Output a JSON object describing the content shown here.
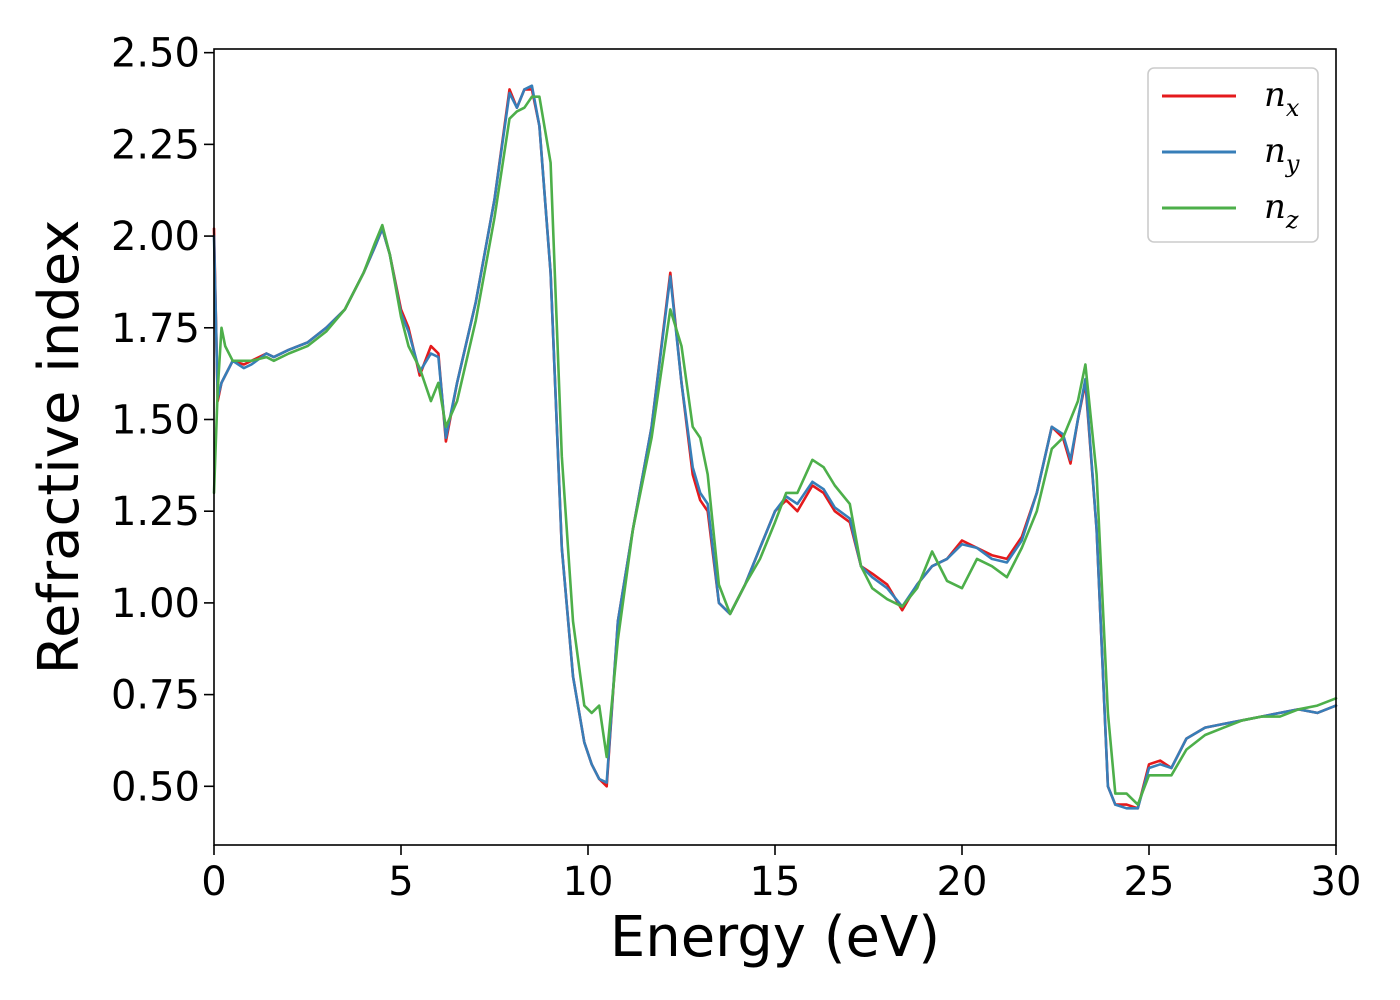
{
  "chart_data": {
    "type": "line",
    "title": "",
    "xlabel": "Energy (eV)",
    "ylabel": "Refractive index",
    "xlim": [
      0,
      30
    ],
    "ylim": [
      0.34,
      2.51
    ],
    "xticks": [
      0,
      5,
      10,
      15,
      20,
      25,
      30
    ],
    "xtick_labels": [
      "0",
      "5",
      "10",
      "15",
      "20",
      "25",
      "30"
    ],
    "yticks": [
      0.5,
      0.75,
      1.0,
      1.25,
      1.5,
      1.75,
      2.0,
      2.25,
      2.5
    ],
    "ytick_labels": [
      "0.50",
      "0.75",
      "1.00",
      "1.25",
      "1.50",
      "1.75",
      "2.00",
      "2.25",
      "2.50"
    ],
    "grid": false,
    "legend_position": "top-right",
    "series": [
      {
        "name": "n",
        "subscript": "x",
        "color": "#e41a1c",
        "x": [
          0,
          0.1,
          0.2,
          0.3,
          0.5,
          0.8,
          1.0,
          1.4,
          1.6,
          2.0,
          2.5,
          3.0,
          3.5,
          4.0,
          4.3,
          4.5,
          4.7,
          5.0,
          5.2,
          5.5,
          5.8,
          6.0,
          6.2,
          6.5,
          7.0,
          7.5,
          7.9,
          8.1,
          8.3,
          8.5,
          8.7,
          9.0,
          9.3,
          9.6,
          9.9,
          10.1,
          10.3,
          10.5,
          10.8,
          11.2,
          11.7,
          12.2,
          12.5,
          12.8,
          13.0,
          13.2,
          13.5,
          13.8,
          14.2,
          14.6,
          15.0,
          15.3,
          15.6,
          16.0,
          16.3,
          16.6,
          17.0,
          17.3,
          17.6,
          18.0,
          18.4,
          18.8,
          19.2,
          19.6,
          20.0,
          20.4,
          20.8,
          21.2,
          21.6,
          22.0,
          22.4,
          22.7,
          22.9,
          23.1,
          23.3,
          23.6,
          23.9,
          24.1,
          24.4,
          24.7,
          25.0,
          25.3,
          25.6,
          26.0,
          26.5,
          27.0,
          27.5,
          28.0,
          28.5,
          29.0,
          29.5,
          30.0
        ],
        "y": [
          2.02,
          1.55,
          1.6,
          1.62,
          1.66,
          1.65,
          1.66,
          1.68,
          1.67,
          1.69,
          1.71,
          1.75,
          1.8,
          1.9,
          1.97,
          2.02,
          1.95,
          1.8,
          1.75,
          1.62,
          1.7,
          1.68,
          1.44,
          1.6,
          1.82,
          2.1,
          2.4,
          2.35,
          2.4,
          2.4,
          2.3,
          1.9,
          1.15,
          0.8,
          0.62,
          0.56,
          0.52,
          0.5,
          0.95,
          1.2,
          1.48,
          1.9,
          1.6,
          1.35,
          1.28,
          1.25,
          1.0,
          0.97,
          1.05,
          1.15,
          1.25,
          1.28,
          1.25,
          1.32,
          1.3,
          1.25,
          1.22,
          1.1,
          1.08,
          1.05,
          0.98,
          1.05,
          1.1,
          1.12,
          1.17,
          1.15,
          1.13,
          1.12,
          1.18,
          1.3,
          1.48,
          1.45,
          1.38,
          1.5,
          1.6,
          1.2,
          0.5,
          0.45,
          0.45,
          0.44,
          0.56,
          0.57,
          0.55,
          0.63,
          0.66,
          0.67,
          0.68,
          0.69,
          0.7,
          0.71,
          0.7,
          0.72
        ]
      },
      {
        "name": "n",
        "subscript": "y",
        "color": "#377eb8",
        "x": [
          0,
          0.1,
          0.2,
          0.3,
          0.5,
          0.8,
          1.0,
          1.4,
          1.6,
          2.0,
          2.5,
          3.0,
          3.5,
          4.0,
          4.3,
          4.5,
          4.7,
          5.0,
          5.2,
          5.5,
          5.8,
          6.0,
          6.2,
          6.5,
          7.0,
          7.5,
          7.9,
          8.1,
          8.3,
          8.5,
          8.7,
          9.0,
          9.3,
          9.6,
          9.9,
          10.1,
          10.3,
          10.5,
          10.8,
          11.2,
          11.7,
          12.2,
          12.5,
          12.8,
          13.0,
          13.2,
          13.5,
          13.8,
          14.2,
          14.6,
          15.0,
          15.3,
          15.6,
          16.0,
          16.3,
          16.6,
          17.0,
          17.3,
          17.6,
          18.0,
          18.4,
          18.8,
          19.2,
          19.6,
          20.0,
          20.4,
          20.8,
          21.2,
          21.6,
          22.0,
          22.4,
          22.7,
          22.9,
          23.1,
          23.3,
          23.6,
          23.9,
          24.1,
          24.4,
          24.7,
          25.0,
          25.3,
          25.6,
          26.0,
          26.5,
          27.0,
          27.5,
          28.0,
          28.5,
          29.0,
          29.5,
          30.0
        ],
        "y": [
          2.0,
          1.56,
          1.6,
          1.62,
          1.66,
          1.64,
          1.65,
          1.68,
          1.67,
          1.69,
          1.71,
          1.75,
          1.8,
          1.9,
          1.97,
          2.02,
          1.95,
          1.79,
          1.74,
          1.63,
          1.68,
          1.67,
          1.45,
          1.6,
          1.82,
          2.1,
          2.39,
          2.35,
          2.4,
          2.41,
          2.3,
          1.9,
          1.15,
          0.8,
          0.62,
          0.56,
          0.52,
          0.51,
          0.95,
          1.2,
          1.48,
          1.89,
          1.6,
          1.37,
          1.3,
          1.27,
          1.0,
          0.97,
          1.05,
          1.15,
          1.25,
          1.29,
          1.27,
          1.33,
          1.31,
          1.26,
          1.23,
          1.1,
          1.07,
          1.04,
          0.99,
          1.05,
          1.1,
          1.12,
          1.16,
          1.15,
          1.12,
          1.11,
          1.17,
          1.3,
          1.48,
          1.46,
          1.39,
          1.5,
          1.61,
          1.2,
          0.5,
          0.45,
          0.44,
          0.44,
          0.55,
          0.56,
          0.55,
          0.63,
          0.66,
          0.67,
          0.68,
          0.69,
          0.7,
          0.71,
          0.7,
          0.72
        ]
      },
      {
        "name": "n",
        "subscript": "z",
        "color": "#4daf4a",
        "x": [
          0,
          0.1,
          0.2,
          0.3,
          0.5,
          0.8,
          1.0,
          1.4,
          1.6,
          2.0,
          2.5,
          3.0,
          3.5,
          4.0,
          4.3,
          4.5,
          4.7,
          5.0,
          5.2,
          5.5,
          5.8,
          6.0,
          6.2,
          6.5,
          7.0,
          7.5,
          7.9,
          8.1,
          8.3,
          8.5,
          8.7,
          9.0,
          9.3,
          9.6,
          9.9,
          10.1,
          10.3,
          10.5,
          10.8,
          11.2,
          11.7,
          12.2,
          12.5,
          12.8,
          13.0,
          13.2,
          13.5,
          13.8,
          14.2,
          14.6,
          15.0,
          15.3,
          15.6,
          16.0,
          16.3,
          16.6,
          17.0,
          17.3,
          17.6,
          18.0,
          18.4,
          18.8,
          19.2,
          19.6,
          20.0,
          20.4,
          20.8,
          21.2,
          21.6,
          22.0,
          22.4,
          22.7,
          22.9,
          23.1,
          23.3,
          23.6,
          23.9,
          24.1,
          24.4,
          24.7,
          25.0,
          25.3,
          25.6,
          26.0,
          26.5,
          27.0,
          27.5,
          28.0,
          28.5,
          29.0,
          29.5,
          30.0
        ],
        "y": [
          1.3,
          1.58,
          1.75,
          1.7,
          1.66,
          1.66,
          1.66,
          1.67,
          1.66,
          1.68,
          1.7,
          1.74,
          1.8,
          1.9,
          1.98,
          2.03,
          1.95,
          1.78,
          1.7,
          1.64,
          1.55,
          1.6,
          1.48,
          1.55,
          1.77,
          2.05,
          2.32,
          2.34,
          2.35,
          2.38,
          2.38,
          2.2,
          1.4,
          0.95,
          0.72,
          0.7,
          0.72,
          0.58,
          0.9,
          1.2,
          1.45,
          1.8,
          1.7,
          1.48,
          1.45,
          1.35,
          1.05,
          0.97,
          1.05,
          1.12,
          1.22,
          1.3,
          1.3,
          1.39,
          1.37,
          1.32,
          1.27,
          1.1,
          1.04,
          1.01,
          0.99,
          1.04,
          1.14,
          1.06,
          1.04,
          1.12,
          1.1,
          1.07,
          1.15,
          1.25,
          1.42,
          1.45,
          1.5,
          1.55,
          1.65,
          1.35,
          0.7,
          0.48,
          0.48,
          0.45,
          0.53,
          0.53,
          0.53,
          0.6,
          0.64,
          0.66,
          0.68,
          0.69,
          0.69,
          0.71,
          0.72,
          0.74
        ]
      }
    ]
  }
}
